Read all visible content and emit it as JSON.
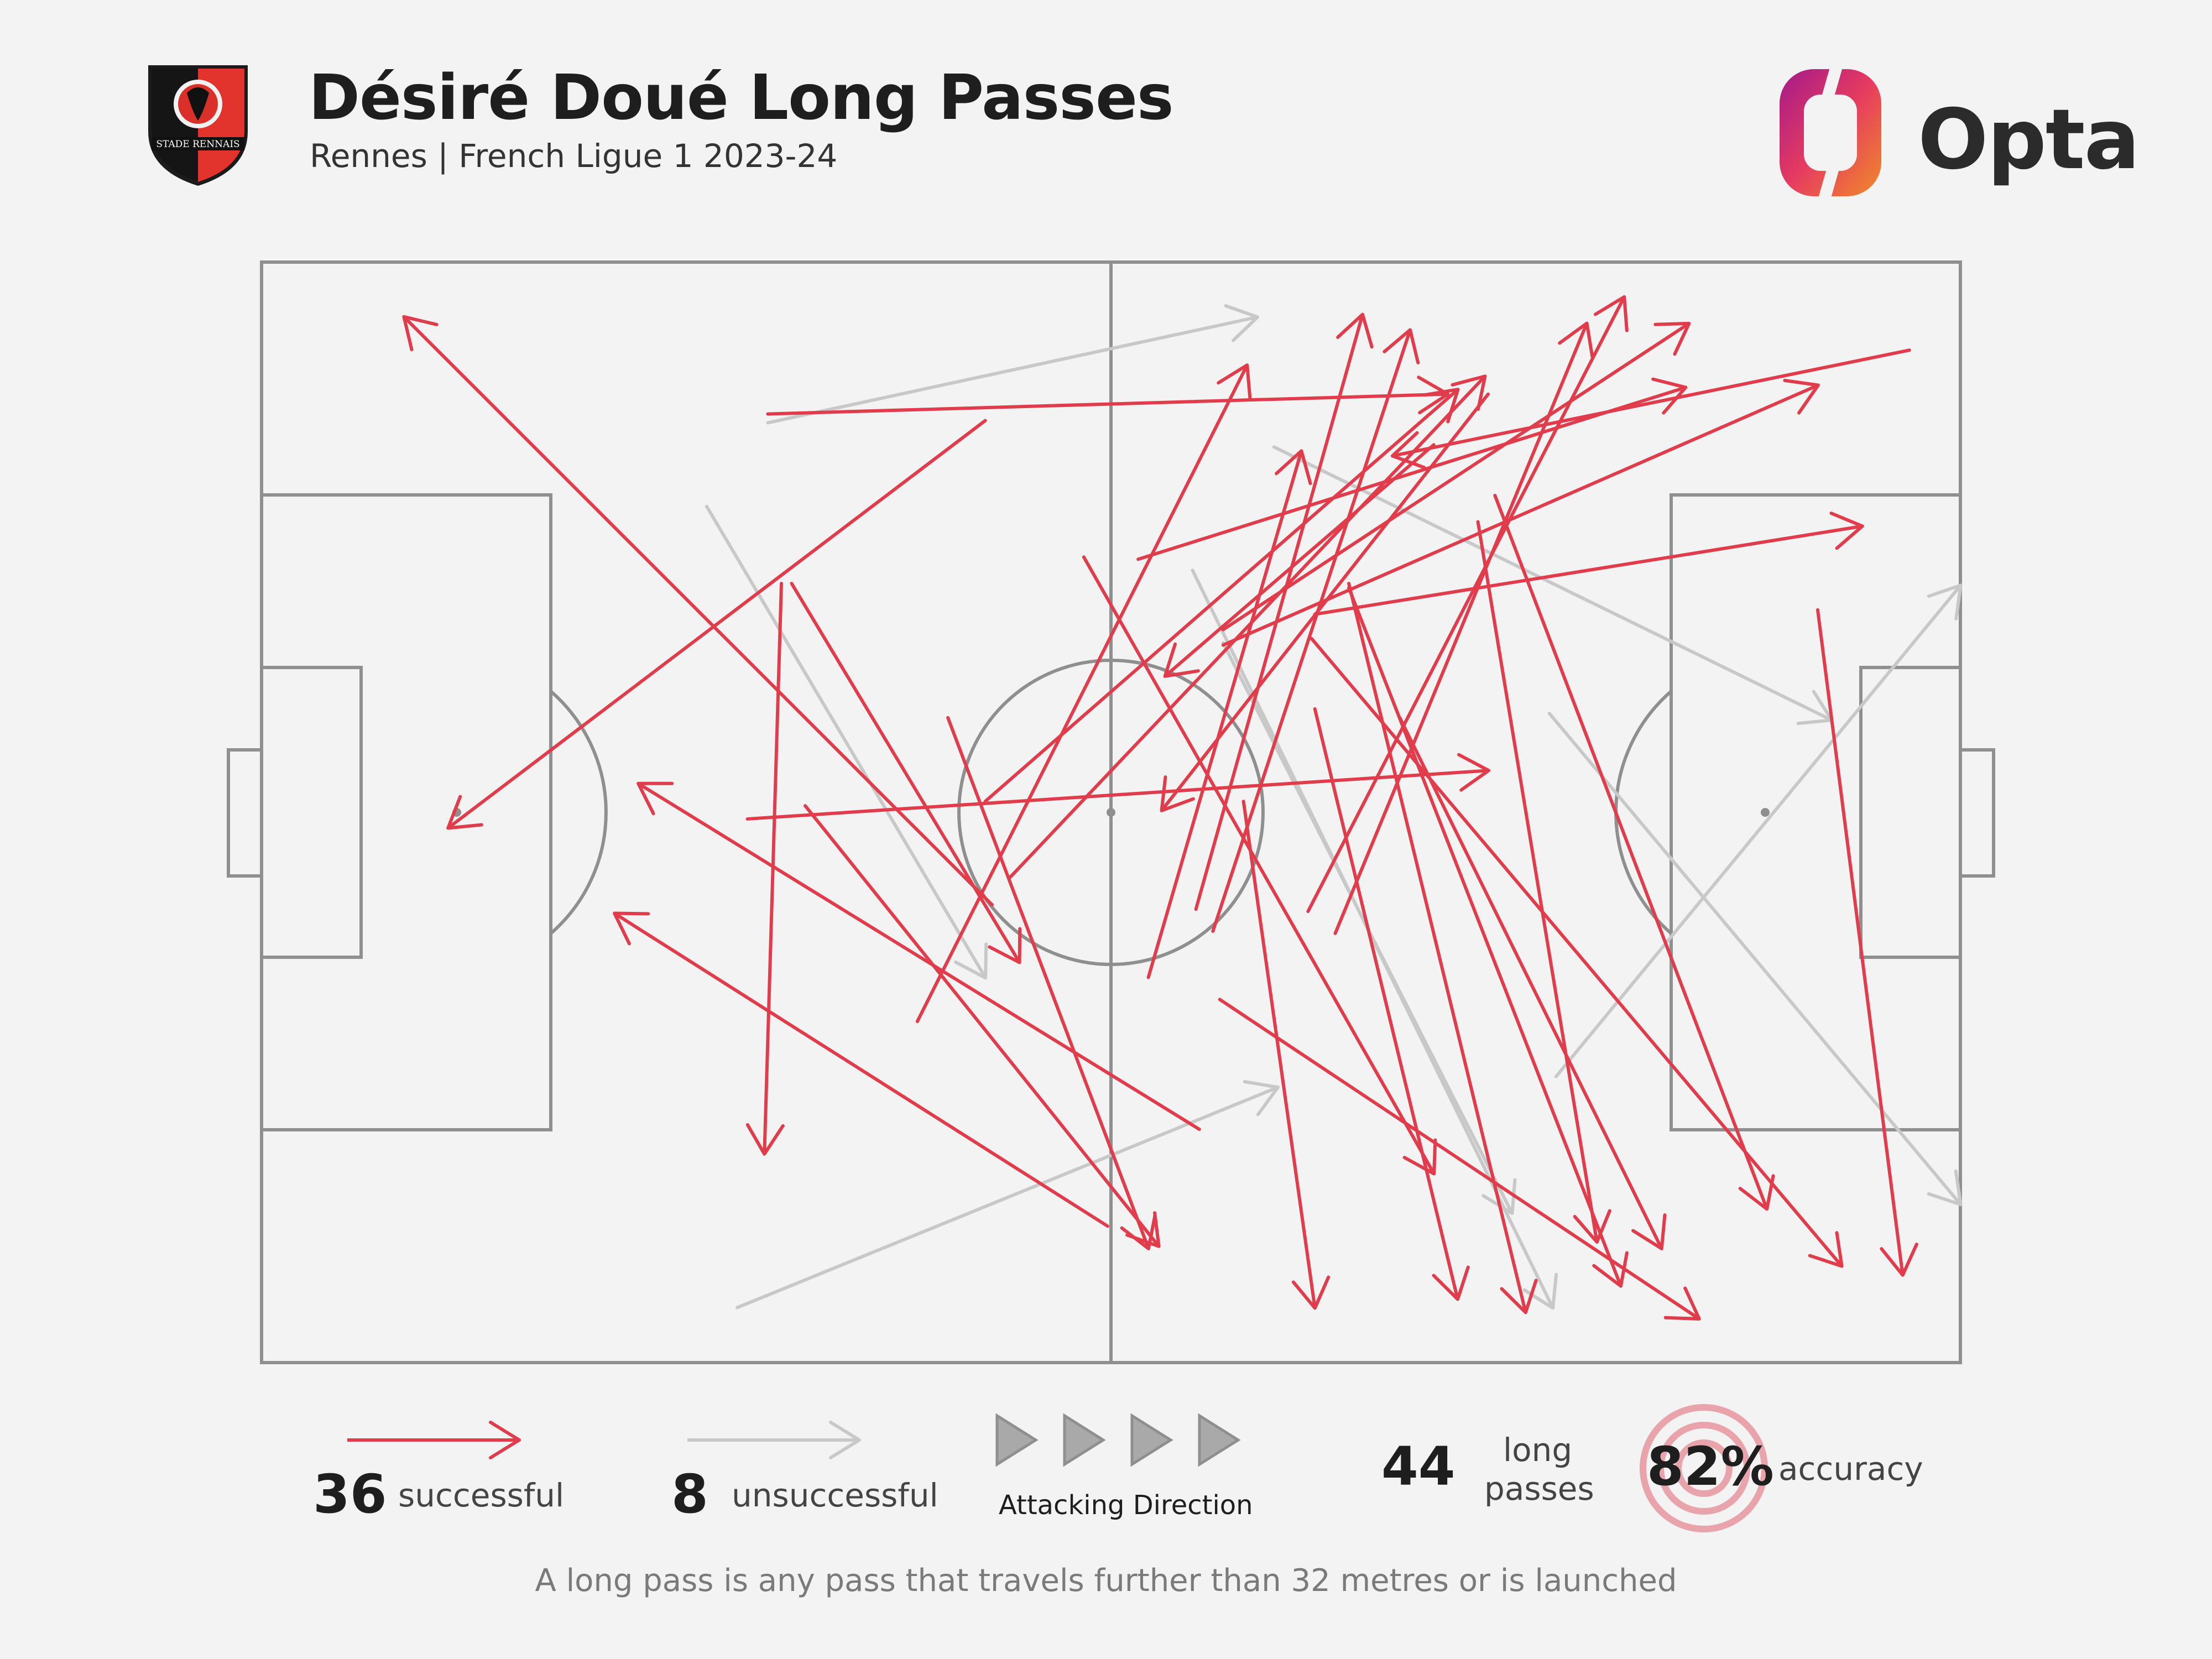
{
  "header": {
    "title": "Désiré Doué Long Passes",
    "subtitle": "Rennes | French Ligue 1 2023-24",
    "crest_text": "STADE RENNAIS"
  },
  "brand": {
    "name": "Opta"
  },
  "colors": {
    "successful": "#e03c4b",
    "unsuccessful": "#c8c8c8",
    "pitch_line": "#8f8f8f",
    "background": "#f3f3f3"
  },
  "legend": {
    "successful_count": "36",
    "successful_label": "successful",
    "unsuccessful_count": "8",
    "unsuccessful_label": "unsuccessful",
    "direction_label": "Attacking Direction",
    "total_count": "44",
    "total_label_line1": "long",
    "total_label_line2": "passes",
    "accuracy_value": "82%",
    "accuracy_label": "accuracy"
  },
  "footnote": "A long pass is any pass that travels further than 32 metres or is launched",
  "chart_data": {
    "type": "pass-map",
    "pitch": {
      "length": 100,
      "width": 100,
      "attacking_direction": "left-to-right"
    },
    "passes": [
      {
        "x1": 29.8,
        "y1": 14.6,
        "x2": 58.6,
        "y2": 5.0,
        "outcome": "unsuccessful"
      },
      {
        "x1": 26.2,
        "y1": 22.2,
        "x2": 42.6,
        "y2": 65.0,
        "outcome": "unsuccessful"
      },
      {
        "x1": 54.8,
        "y1": 28.0,
        "x2": 76.0,
        "y2": 95.0,
        "outcome": "unsuccessful"
      },
      {
        "x1": 59.6,
        "y1": 16.8,
        "x2": 92.4,
        "y2": 41.6,
        "outcome": "unsuccessful"
      },
      {
        "x1": 28.0,
        "y1": 95.0,
        "x2": 59.8,
        "y2": 75.0,
        "outcome": "unsuccessful"
      },
      {
        "x1": 75.8,
        "y1": 41.0,
        "x2": 100.0,
        "y2": 85.6,
        "outcome": "unsuccessful"
      },
      {
        "x1": 76.2,
        "y1": 74.0,
        "x2": 100.0,
        "y2": 29.4,
        "outcome": "unsuccessful"
      },
      {
        "x1": 56.6,
        "y1": 34.6,
        "x2": 73.6,
        "y2": 86.4,
        "outcome": "unsuccessful"
      },
      {
        "x1": 42.6,
        "y1": 14.4,
        "x2": 11.0,
        "y2": 51.4,
        "outcome": "successful"
      },
      {
        "x1": 43.0,
        "y1": 58.4,
        "x2": 8.4,
        "y2": 5.0,
        "outcome": "successful"
      },
      {
        "x1": 31.2,
        "y1": 29.2,
        "x2": 44.6,
        "y2": 63.6,
        "outcome": "successful"
      },
      {
        "x1": 30.6,
        "y1": 29.2,
        "x2": 29.6,
        "y2": 81.0,
        "outcome": "successful"
      },
      {
        "x1": 29.8,
        "y1": 13.8,
        "x2": 69.8,
        "y2": 12.0,
        "outcome": "successful"
      },
      {
        "x1": 28.6,
        "y1": 50.6,
        "x2": 72.2,
        "y2": 46.2,
        "outcome": "successful"
      },
      {
        "x1": 55.2,
        "y1": 78.8,
        "x2": 22.2,
        "y2": 47.4,
        "outcome": "successful"
      },
      {
        "x1": 49.8,
        "y1": 87.6,
        "x2": 20.8,
        "y2": 59.2,
        "outcome": "successful"
      },
      {
        "x1": 32.0,
        "y1": 49.4,
        "x2": 52.8,
        "y2": 89.4,
        "outcome": "successful"
      },
      {
        "x1": 38.6,
        "y1": 69.0,
        "x2": 58.0,
        "y2": 9.4,
        "outcome": "successful"
      },
      {
        "x1": 42.6,
        "y1": 49.0,
        "x2": 70.4,
        "y2": 11.6,
        "outcome": "successful"
      },
      {
        "x1": 44.0,
        "y1": 56.0,
        "x2": 72.0,
        "y2": 10.4,
        "outcome": "successful"
      },
      {
        "x1": 52.2,
        "y1": 65.0,
        "x2": 61.2,
        "y2": 17.2,
        "outcome": "successful"
      },
      {
        "x1": 55.0,
        "y1": 58.8,
        "x2": 64.8,
        "y2": 4.8,
        "outcome": "successful"
      },
      {
        "x1": 56.0,
        "y1": 60.8,
        "x2": 67.6,
        "y2": 6.2,
        "outcome": "successful"
      },
      {
        "x1": 51.6,
        "y1": 27.0,
        "x2": 83.8,
        "y2": 11.4,
        "outcome": "successful"
      },
      {
        "x1": 56.6,
        "y1": 33.4,
        "x2": 84.0,
        "y2": 5.6,
        "outcome": "successful"
      },
      {
        "x1": 62.0,
        "y1": 32.0,
        "x2": 94.2,
        "y2": 24.0,
        "outcome": "successful"
      },
      {
        "x1": 97.0,
        "y1": 8.0,
        "x2": 66.6,
        "y2": 17.6,
        "outcome": "successful"
      },
      {
        "x1": 56.6,
        "y1": 34.8,
        "x2": 91.6,
        "y2": 11.2,
        "outcome": "successful"
      },
      {
        "x1": 61.6,
        "y1": 59.0,
        "x2": 80.2,
        "y2": 3.2,
        "outcome": "successful"
      },
      {
        "x1": 63.2,
        "y1": 61.0,
        "x2": 78.0,
        "y2": 5.6,
        "outcome": "successful"
      },
      {
        "x1": 91.6,
        "y1": 31.6,
        "x2": 96.6,
        "y2": 92.0,
        "outcome": "successful"
      },
      {
        "x1": 72.2,
        "y1": 12.0,
        "x2": 53.0,
        "y2": 49.8,
        "outcome": "successful"
      },
      {
        "x1": 69.0,
        "y1": 16.6,
        "x2": 53.2,
        "y2": 37.6,
        "outcome": "successful"
      },
      {
        "x1": 57.8,
        "y1": 49.0,
        "x2": 62.0,
        "y2": 95.0,
        "outcome": "successful"
      },
      {
        "x1": 61.8,
        "y1": 34.2,
        "x2": 93.0,
        "y2": 91.2,
        "outcome": "successful"
      },
      {
        "x1": 62.0,
        "y1": 40.6,
        "x2": 70.4,
        "y2": 94.2,
        "outcome": "successful"
      },
      {
        "x1": 64.0,
        "y1": 29.6,
        "x2": 80.0,
        "y2": 93.0,
        "outcome": "successful"
      },
      {
        "x1": 67.0,
        "y1": 41.4,
        "x2": 82.4,
        "y2": 89.6,
        "outcome": "successful"
      },
      {
        "x1": 71.6,
        "y1": 23.6,
        "x2": 78.6,
        "y2": 89.0,
        "outcome": "successful"
      },
      {
        "x1": 72.6,
        "y1": 21.2,
        "x2": 88.6,
        "y2": 86.0,
        "outcome": "successful"
      },
      {
        "x1": 56.4,
        "y1": 67.0,
        "x2": 84.6,
        "y2": 96.0,
        "outcome": "successful"
      },
      {
        "x1": 48.4,
        "y1": 26.8,
        "x2": 69.0,
        "y2": 82.8,
        "outcome": "successful"
      },
      {
        "x1": 64.0,
        "y1": 29.2,
        "x2": 74.4,
        "y2": 95.4,
        "outcome": "successful"
      },
      {
        "x1": 40.4,
        "y1": 41.4,
        "x2": 52.2,
        "y2": 89.6,
        "outcome": "successful"
      }
    ]
  }
}
